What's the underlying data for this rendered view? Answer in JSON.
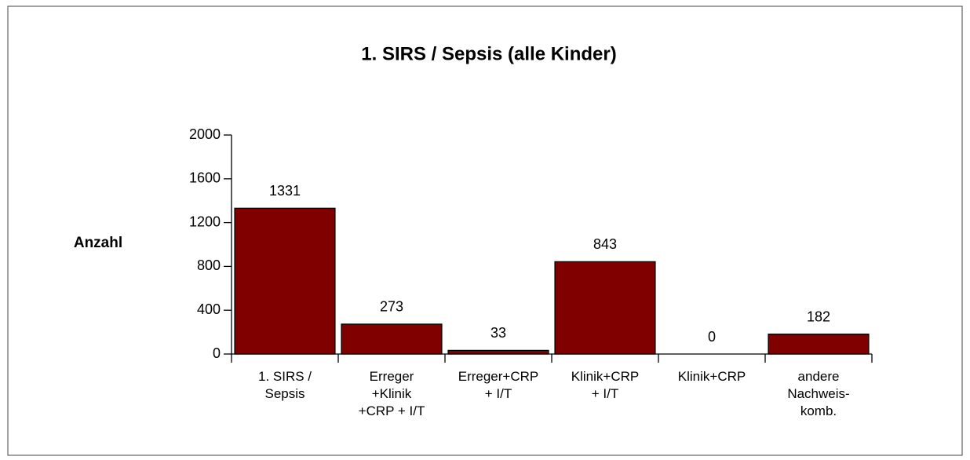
{
  "chart_data": {
    "type": "bar",
    "title": "1. SIRS / Sepsis (alle Kinder)",
    "y_label": "Anzahl",
    "categories": [
      "1. SIRS /\nSepsis",
      "Erreger\n+Klinik\n+CRP + I/T",
      "Erreger+CRP\n+ I/T",
      "Klinik+CRP\n+ I/T",
      "Klinik+CRP",
      "andere\nNachweis-\nkomb."
    ],
    "values": [
      1331,
      273,
      33,
      843,
      0,
      182
    ],
    "color": "#800000",
    "ylim": [
      0,
      2000
    ],
    "yticks": [
      0,
      400,
      800,
      1200,
      1600,
      2000
    ],
    "grid": false
  }
}
